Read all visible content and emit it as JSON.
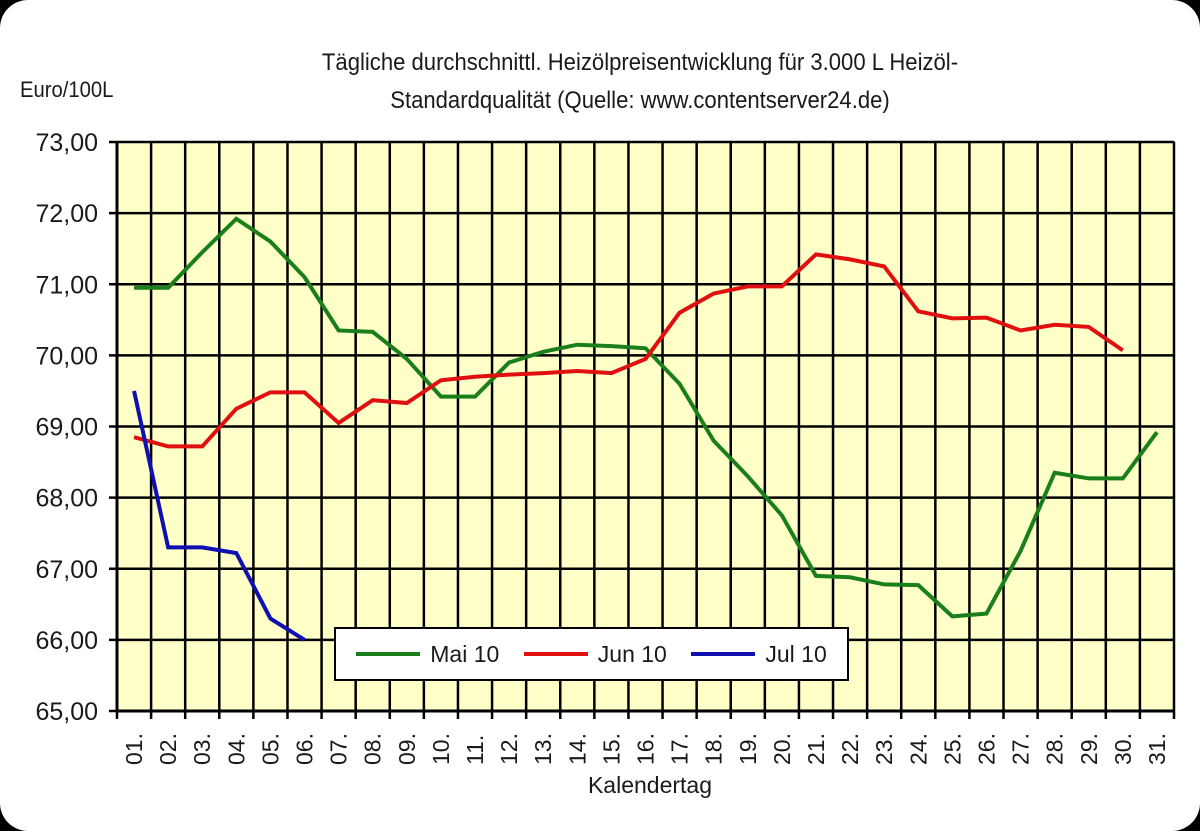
{
  "chart_data": {
    "type": "line",
    "title": "Tägliche durchschnittl. Heizölpreisentwicklung für 3.000 L Heizöl-Standardqualität (Quelle: www.contentserver24.de)",
    "title_lines": [
      "Tägliche durchschnittl. Heizölpreisentwicklung für 3.000 L Heizöl-",
      "Standardqualität (Quelle: www.contentserver24.de)"
    ],
    "xlabel": "Kalendertag",
    "ylabel": "Euro/100L",
    "ylim": [
      65,
      73
    ],
    "yticks": [
      "73,00",
      "72,00",
      "71,00",
      "70,00",
      "69,00",
      "68,00",
      "67,00",
      "66,00",
      "65,00"
    ],
    "x": [
      "01.",
      "02.",
      "03.",
      "04.",
      "05.",
      "06.",
      "07.",
      "08.",
      "09.",
      "10.",
      "11.",
      "12.",
      "13.",
      "14.",
      "15.",
      "16.",
      "17.",
      "18.",
      "19.",
      "20.",
      "21.",
      "22.",
      "23.",
      "24.",
      "25.",
      "26.",
      "27.",
      "28.",
      "29.",
      "30.",
      "31."
    ],
    "grid": true,
    "legend_position": "bottom-inside",
    "background_color": "#ffffc8",
    "series": [
      {
        "name": "Mai 10",
        "color": "#1a7f1a",
        "values": [
          70.95,
          70.95,
          71.45,
          71.92,
          71.6,
          71.1,
          70.35,
          70.33,
          69.95,
          69.42,
          69.42,
          69.9,
          70.05,
          70.15,
          70.13,
          70.1,
          69.6,
          68.8,
          68.3,
          67.75,
          66.9,
          66.88,
          66.78,
          66.77,
          66.33,
          66.37,
          67.25,
          68.35,
          68.27,
          68.27,
          68.92
        ]
      },
      {
        "name": "Jun 10",
        "color": "#e01010",
        "values": [
          68.85,
          68.72,
          68.72,
          69.25,
          69.48,
          69.48,
          69.05,
          69.37,
          69.33,
          69.65,
          69.7,
          69.73,
          69.75,
          69.78,
          69.75,
          69.95,
          70.6,
          70.87,
          70.97,
          70.97,
          71.42,
          71.35,
          71.25,
          70.62,
          70.52,
          70.53,
          70.35,
          70.43,
          70.4,
          70.07
        ]
      },
      {
        "name": "Jul 10",
        "color": "#1010b0",
        "values": [
          69.5,
          67.3,
          67.3,
          67.22,
          66.3,
          66.0
        ]
      }
    ]
  }
}
